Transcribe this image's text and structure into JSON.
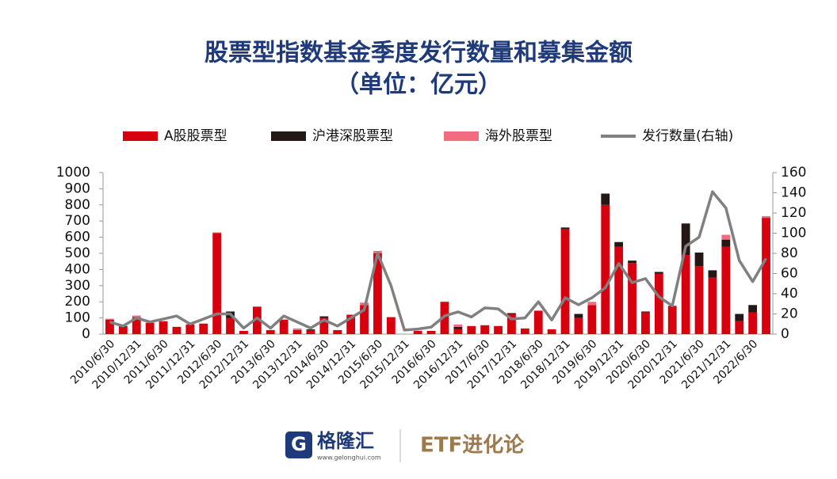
{
  "chart_data": {
    "type": "stacked_bar_line",
    "title": "股票型指数基金季度发行数量和募集金额",
    "subtitle": "（单位：亿元）",
    "categories": [
      "2010/6/30",
      null,
      "2010/12/31",
      null,
      "2011/6/30",
      null,
      "2011/12/31",
      null,
      "2012/6/30",
      null,
      "2012/12/31",
      null,
      "2013/6/30",
      null,
      "2013/12/31",
      null,
      "2014/6/30",
      null,
      "2014/12/31",
      null,
      "2015/6/30",
      null,
      "2015/12/31",
      null,
      "2016/6/30",
      null,
      "2016/12/31",
      null,
      "2017/6/30",
      null,
      "2017/12/31",
      null,
      "2018/6/30",
      null,
      "2018/12/31",
      null,
      "2019/6/30",
      null,
      "2019/12/31",
      null,
      "2020/6/30",
      null,
      "2020/12/31",
      null,
      "2021/6/30",
      null,
      "2021/12/31",
      null,
      "2022/6/30",
      null
    ],
    "series": [
      {
        "name": "A股股票型",
        "type": "bar",
        "color": "#d7000f",
        "values": [
          90,
          45,
          105,
          70,
          80,
          45,
          60,
          65,
          625,
          100,
          20,
          170,
          25,
          90,
          25,
          25,
          100,
          25,
          120,
          180,
          500,
          105,
          0,
          20,
          20,
          200,
          30,
          50,
          55,
          50,
          125,
          35,
          145,
          30,
          650,
          100,
          180,
          800,
          540,
          440,
          135,
          375,
          175,
          490,
          420,
          350,
          540,
          80,
          135,
          720
        ]
      },
      {
        "name": "沪港深股票型",
        "type": "bar",
        "color": "#231815",
        "values": [
          0,
          5,
          0,
          0,
          0,
          0,
          0,
          0,
          0,
          40,
          0,
          0,
          0,
          0,
          0,
          5,
          10,
          0,
          0,
          0,
          0,
          0,
          0,
          0,
          0,
          0,
          15,
          0,
          0,
          0,
          5,
          0,
          0,
          0,
          10,
          25,
          0,
          70,
          30,
          15,
          5,
          10,
          0,
          195,
          85,
          45,
          45,
          45,
          45,
          0
        ]
      },
      {
        "name": "海外股票型",
        "type": "bar",
        "color": "#f36b7f",
        "values": [
          5,
          0,
          10,
          0,
          0,
          0,
          0,
          0,
          5,
          0,
          0,
          0,
          0,
          0,
          10,
          0,
          0,
          0,
          0,
          15,
          15,
          0,
          0,
          0,
          0,
          0,
          15,
          0,
          0,
          0,
          0,
          0,
          0,
          0,
          0,
          0,
          20,
          0,
          0,
          0,
          0,
          0,
          0,
          0,
          0,
          0,
          30,
          0,
          0,
          10
        ]
      },
      {
        "name": "发行数量(右轴)",
        "type": "line",
        "axis": "y2",
        "color": "#808080",
        "values": [
          12,
          8,
          16,
          12,
          15,
          18,
          10,
          15,
          20,
          20,
          6,
          16,
          6,
          18,
          12,
          6,
          14,
          8,
          16,
          24,
          80,
          48,
          4,
          5,
          7,
          18,
          22,
          17,
          26,
          25,
          15,
          16,
          32,
          14,
          36,
          29,
          36,
          46,
          70,
          51,
          55,
          37,
          28,
          87,
          96,
          141,
          125,
          73,
          52,
          75
        ]
      }
    ],
    "ylim": [
      0,
      1000
    ],
    "yticks": [
      0,
      100,
      200,
      300,
      400,
      500,
      600,
      700,
      800,
      900,
      1000
    ],
    "y2lim": [
      0,
      160
    ],
    "y2ticks": [
      0,
      20,
      40,
      60,
      80,
      100,
      120,
      140,
      160
    ]
  },
  "footer": {
    "brand": "格隆汇",
    "url": "www.gelonghui.com",
    "right": "ETF进化论"
  }
}
